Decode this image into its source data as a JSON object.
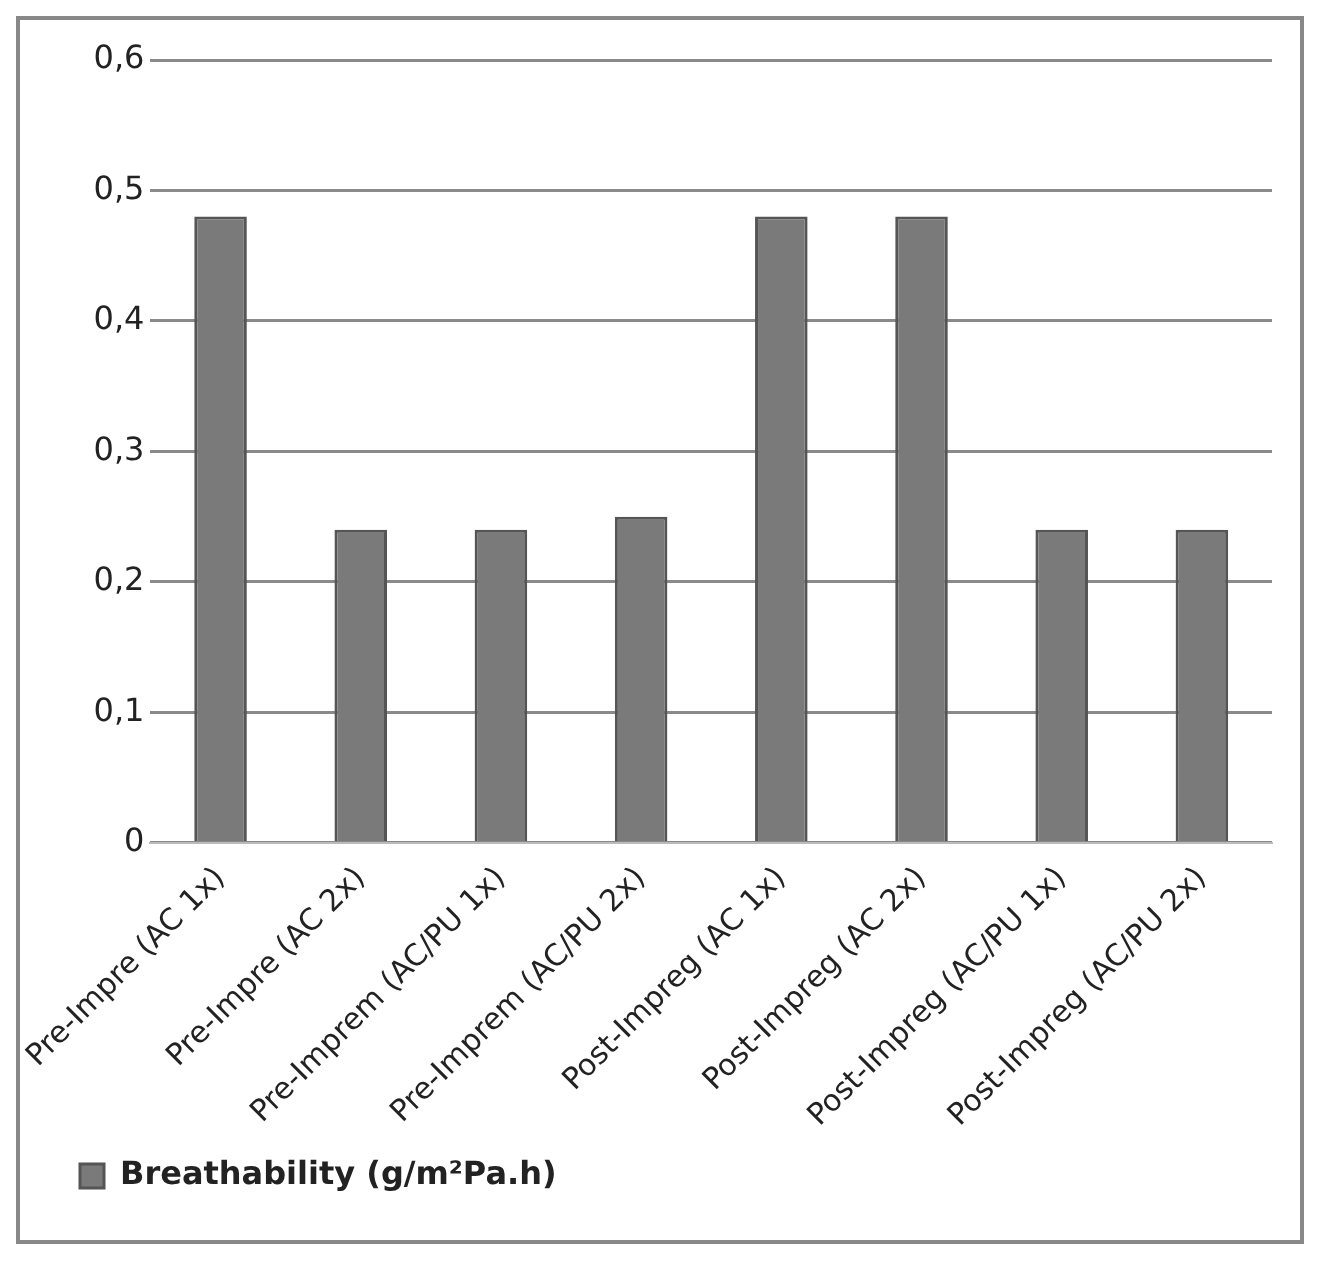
{
  "chart_data": {
    "type": "bar",
    "categories": [
      "Pre-Impre (AC 1x)",
      "Pre-Impre (AC 2x)",
      "Pre-Imprem (AC/PU 1x)",
      "Pre-Imprem (AC/PU 2x)",
      "Post-Impreg (AC 1x)",
      "Post-Impreg (AC 2x)",
      "Post-Impreg (AC/PU 1x)",
      "Post-Impreg (AC/PU 2x)"
    ],
    "series": [
      {
        "name": "Breathability (g/m²Pa.h)",
        "color": "#7a7a7a",
        "values": [
          0.48,
          0.24,
          0.24,
          0.25,
          0.48,
          0.48,
          0.24,
          0.24
        ]
      }
    ],
    "ylim": [
      0,
      0.6
    ],
    "yticks": [
      {
        "value": 0,
        "label": "0"
      },
      {
        "value": 0.1,
        "label": "0,1"
      },
      {
        "value": 0.2,
        "label": "0,2"
      },
      {
        "value": 0.3,
        "label": "0,3"
      },
      {
        "value": 0.4,
        "label": "0,4"
      },
      {
        "value": 0.5,
        "label": "0,5"
      },
      {
        "value": 0.6,
        "label": "0,6"
      }
    ],
    "grid": "y",
    "legend": "bottom left"
  }
}
